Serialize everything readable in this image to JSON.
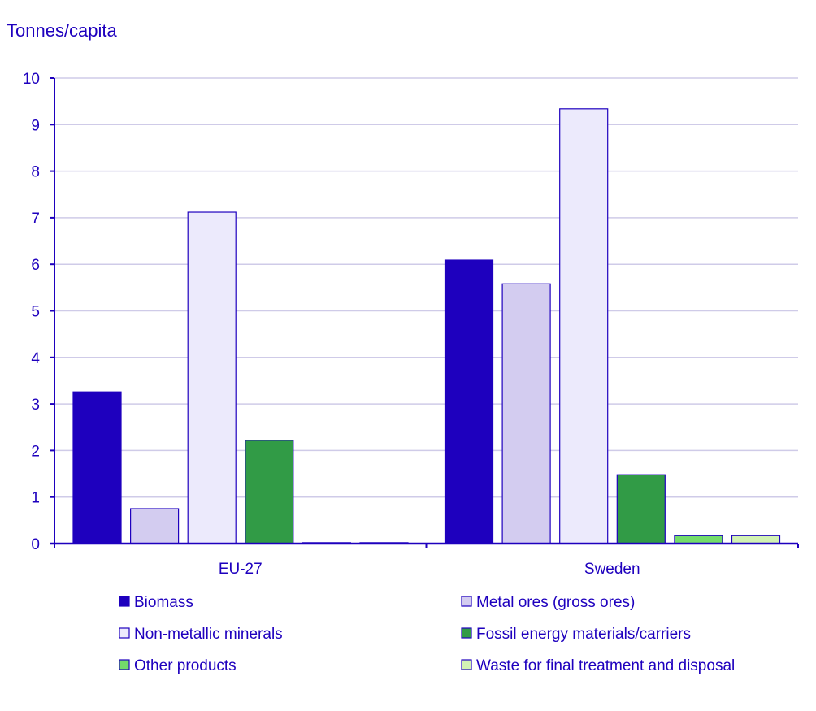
{
  "chart_data": {
    "type": "bar",
    "title": "",
    "ylabel": "Tonnes/capita",
    "xlabel": "",
    "ylim": [
      0,
      10
    ],
    "yticks": [
      0,
      1,
      2,
      3,
      4,
      5,
      6,
      7,
      8,
      9,
      10
    ],
    "grid": true,
    "legend_position": "bottom",
    "categories": [
      "EU-27",
      "Sweden"
    ],
    "series": [
      {
        "name": "Biomass",
        "color": "#1e00be",
        "values": [
          3.26,
          6.09
        ]
      },
      {
        "name": "Metal ores (gross ores)",
        "color": "#d3ccf0",
        "values": [
          0.75,
          5.58
        ]
      },
      {
        "name": "Non-metallic minerals",
        "color": "#eceafc",
        "values": [
          7.12,
          9.34
        ]
      },
      {
        "name": "Fossil energy materials/carriers",
        "color": "#319b46",
        "values": [
          2.22,
          1.48
        ]
      },
      {
        "name": "Other products",
        "color": "#73dc6a",
        "values": [
          0.02,
          0.17
        ]
      },
      {
        "name": "Waste for final treatment and disposal",
        "color": "#d2f2b4",
        "values": [
          0.02,
          0.17
        ]
      }
    ],
    "colors": {
      "text": "#1e00be",
      "grid": "#cfcbe8",
      "axis": "#1e00be"
    }
  }
}
